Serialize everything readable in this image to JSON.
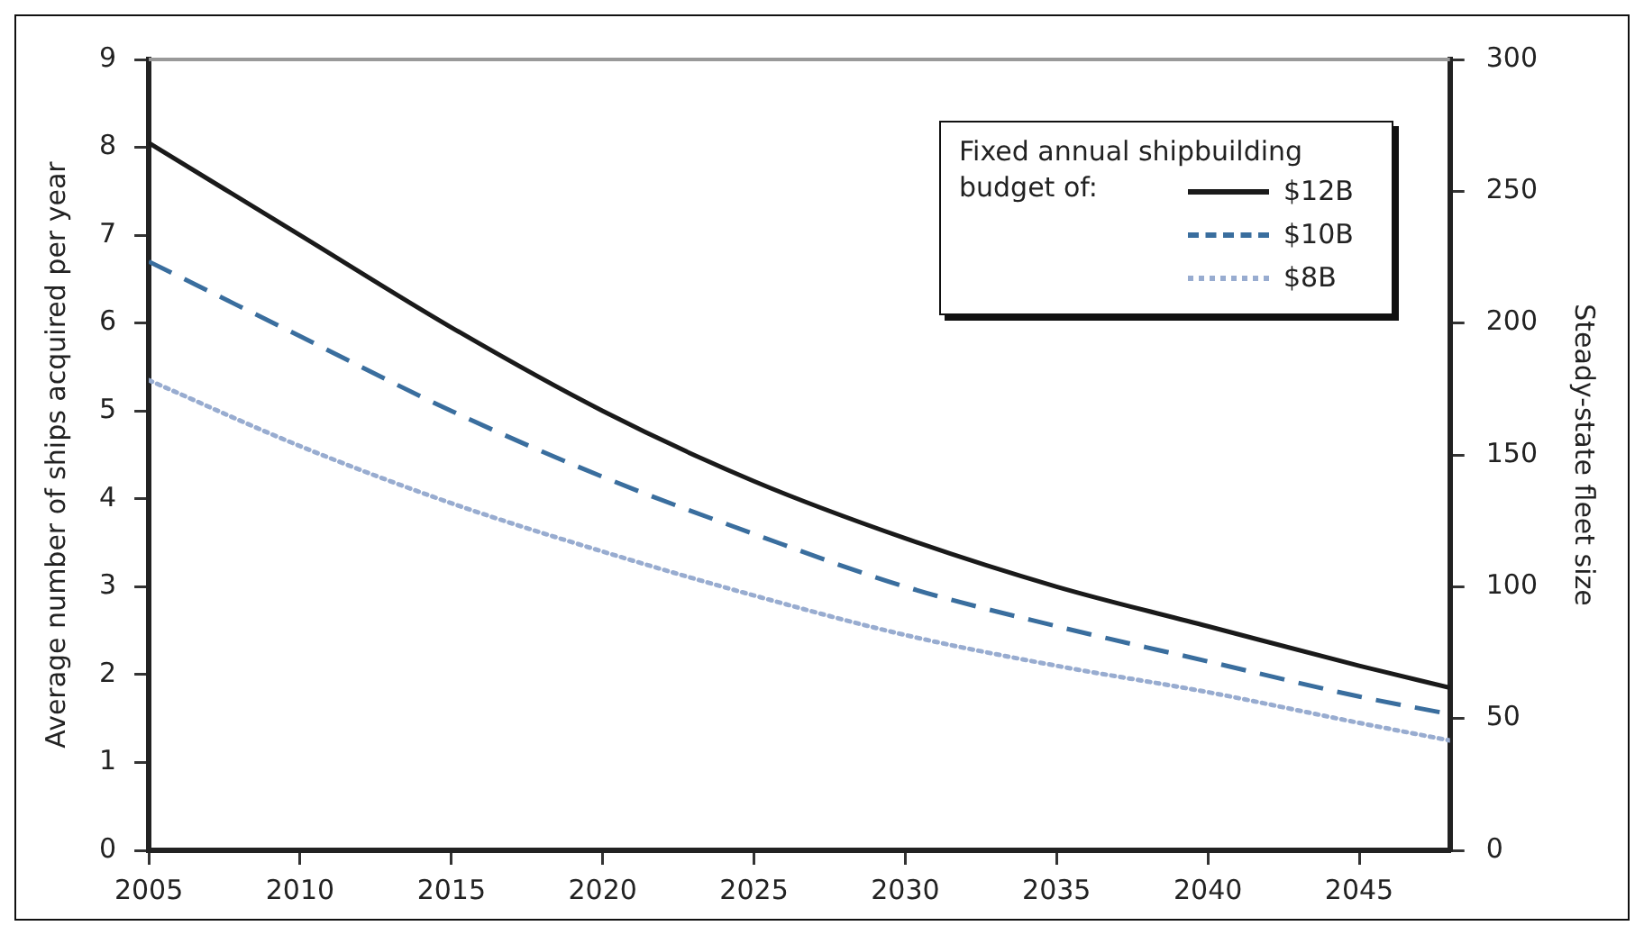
{
  "chart_data": {
    "type": "line",
    "x": [
      2005,
      2010,
      2015,
      2020,
      2025,
      2030,
      2035,
      2040,
      2045,
      2048
    ],
    "series": [
      {
        "name": "$12B",
        "color": "#1a1a1a",
        "line_style": "solid",
        "values": [
          8.05,
          7.0,
          5.95,
          5.0,
          4.2,
          3.55,
          3.0,
          2.55,
          2.1,
          1.85
        ]
      },
      {
        "name": "$10B",
        "color": "#3a6e9e",
        "line_style": "dashed",
        "values": [
          6.7,
          5.85,
          5.0,
          4.25,
          3.6,
          3.0,
          2.55,
          2.15,
          1.75,
          1.55
        ]
      },
      {
        "name": "$8B",
        "color": "#98acd0",
        "line_style": "dotted",
        "values": [
          5.35,
          4.6,
          3.95,
          3.4,
          2.9,
          2.45,
          2.1,
          1.8,
          1.45,
          1.25
        ]
      }
    ],
    "ylabel": "Average number of ships acquired per year",
    "y2label": "Steady-state fleet size",
    "legend_title": "Fixed annual shipbuilding budget of:",
    "xlim": [
      2005,
      2048
    ],
    "xticks": [
      2005,
      2010,
      2015,
      2020,
      2025,
      2030,
      2035,
      2040,
      2045
    ],
    "ylim": [
      0,
      9
    ],
    "yticks": [
      0,
      1,
      2,
      3,
      4,
      5,
      6,
      7,
      8,
      9
    ],
    "y2lim": [
      0,
      300
    ],
    "y2ticks": [
      0,
      50,
      100,
      150,
      200,
      250,
      300
    ],
    "grid": false,
    "legend": "top right",
    "marker": "none"
  }
}
